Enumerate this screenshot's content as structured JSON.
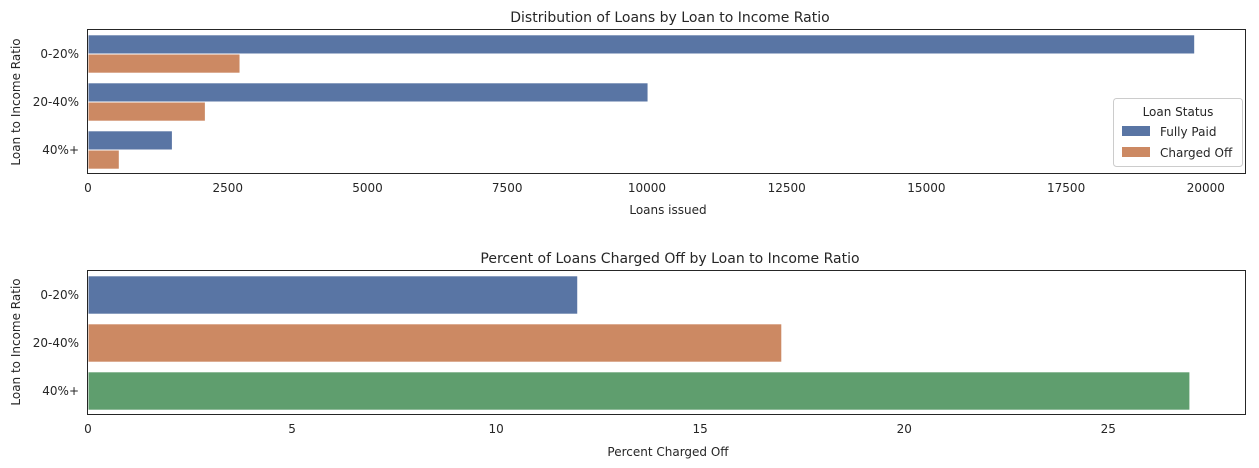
{
  "colors": {
    "blue": "#5975a4",
    "orange": "#cc8963",
    "green": "#5f9e6e"
  },
  "chart_data": [
    {
      "type": "bar",
      "orientation": "horizontal",
      "title": "Distribution of Loans by Loan to Income Ratio",
      "xlabel": "Loans issued",
      "ylabel": "Loan to Income Ratio",
      "categories": [
        "0-20%",
        "20-40%",
        "40%+"
      ],
      "series": [
        {
          "name": "Fully Paid",
          "values": [
            19800,
            10020,
            1510
          ]
        },
        {
          "name": "Charged Off",
          "values": [
            2720,
            2100,
            560
          ]
        }
      ],
      "xlim": [
        0,
        20700
      ],
      "xticks": [
        0,
        2500,
        5000,
        7500,
        10000,
        12500,
        15000,
        17500,
        20000
      ],
      "xtick_labels": [
        "0",
        "2500",
        "5000",
        "7500",
        "10000",
        "12500",
        "15000",
        "17500",
        "20000"
      ],
      "legend": {
        "title": "Loan Status",
        "placement": "right"
      },
      "grid": false
    },
    {
      "type": "bar",
      "orientation": "horizontal",
      "title": "Percent of Loans Charged Off by Loan to Income Ratio",
      "xlabel": "Percent Charged Off",
      "ylabel": "Loan to Income Ratio",
      "categories": [
        "0-20%",
        "20-40%",
        "40%+"
      ],
      "values": [
        12.0,
        17.0,
        27.0
      ],
      "xlim": [
        0,
        28.35
      ],
      "xticks": [
        0,
        5,
        10,
        15,
        20,
        25
      ],
      "xtick_labels": [
        "0",
        "5",
        "10",
        "15",
        "20",
        "25"
      ],
      "grid": false
    }
  ]
}
